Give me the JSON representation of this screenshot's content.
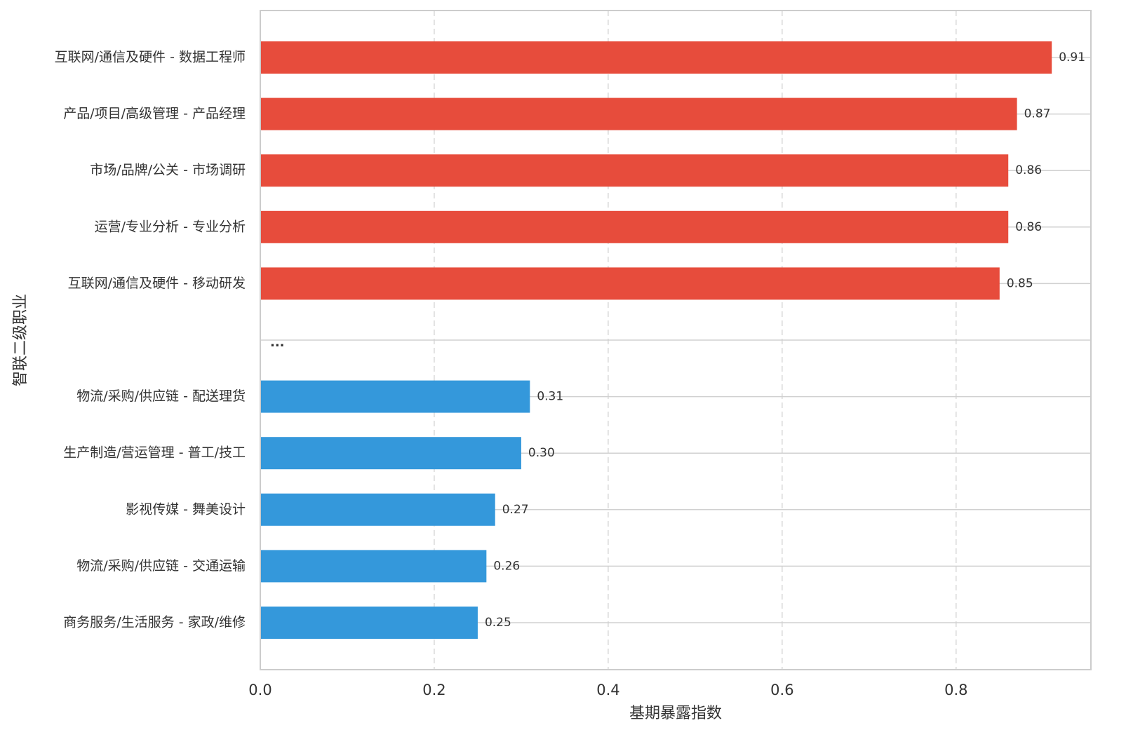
{
  "chart_data": {
    "type": "bar",
    "orientation": "horizontal",
    "x_label": "基期暴露指数",
    "y_label": "智联二级职业",
    "categories": [
      "互联网/通信及硬件 - 数据工程师",
      "产品/项目/高级管理 - 产品经理",
      "市场/品牌/公关 - 市场调研",
      "运营/专业分析 - 专业分析",
      "互联网/通信及硬件 - 移动研发",
      null,
      "物流/采购/供应链 - 配送理货",
      "生产制造/营运管理 - 普工/技工",
      "影视传媒 - 舞美设计",
      "物流/采购/供应链 - 交通运输",
      "商务服务/生活服务 - 家政/维修"
    ],
    "values": [
      0.91,
      0.87,
      0.86,
      0.86,
      0.85,
      null,
      0.31,
      0.3,
      0.27,
      0.26,
      0.25
    ],
    "value_labels": [
      "0.91",
      "0.87",
      "0.86",
      "0.86",
      "0.85",
      null,
      "0.31",
      "0.30",
      "0.27",
      "0.26",
      "0.25"
    ],
    "colors": [
      "#e74c3c",
      "#e74c3c",
      "#e74c3c",
      "#e74c3c",
      "#e74c3c",
      null,
      "#3498db",
      "#3498db",
      "#3498db",
      "#3498db",
      "#3498db"
    ],
    "annotation": "...",
    "xlim": [
      0,
      0.955
    ],
    "xticks": [
      {
        "value": 0,
        "label": "0.0"
      },
      0.2,
      0.4,
      0.6,
      0.8
    ],
    "grid": true
  }
}
